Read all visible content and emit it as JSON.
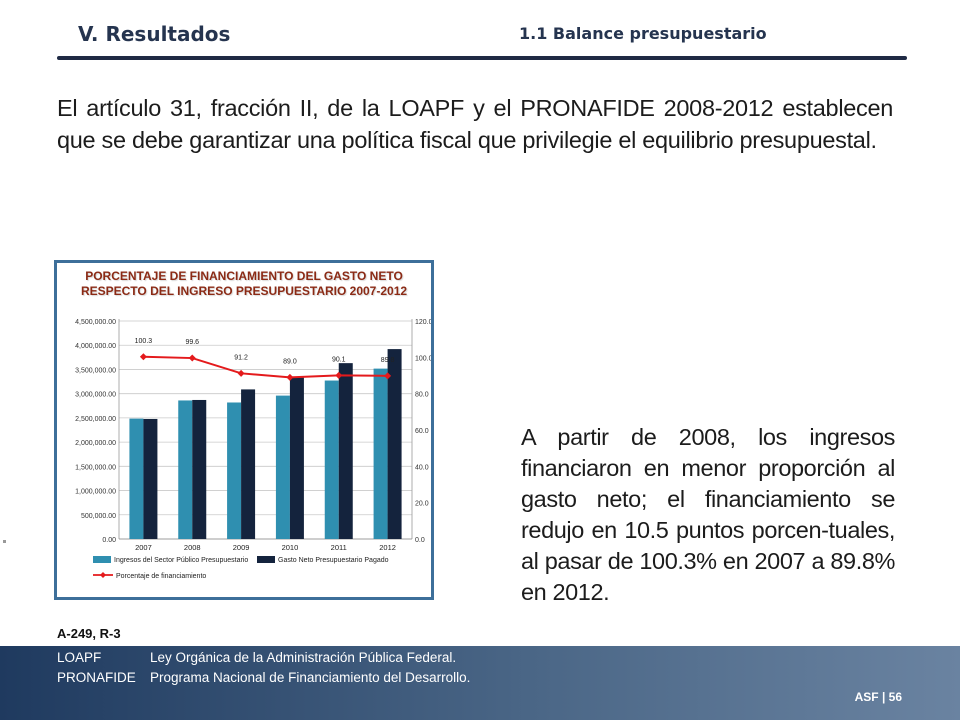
{
  "header": {
    "section": "V. Resultados",
    "subsection": "1.1 Balance presupuestario"
  },
  "intro_text": "El artículo 31, fracción II, de la LOAPF y el PRONAFIDE 2008-2012 establecen que se debe garantizar una política fiscal que privilegie el equilibrio presupuestal.",
  "right_text": "A partir de 2008, los ingresos financiaron en menor proporción al gasto neto; el financiamiento se redujo en 10.5 puntos porcen-tuales, al pasar de 100.3% en 2007 a 89.8% en 2012.",
  "source_ref": "A-249, R-3",
  "footer": {
    "line1_abbr": "LOAPF",
    "line1_text": "Ley Orgánica de la Administración Pública Federal.",
    "line2_abbr": "PRONAFIDE",
    "line2_text": "Programa Nacional de Financiamiento del Desarrollo.",
    "page": "ASF | 56"
  },
  "colors": {
    "brand_navy": "#1f2a44",
    "bar_light": "#2f8fb0",
    "bar_dark": "#14233d",
    "line_red": "#e41a1c",
    "chart_title": "#8b2a15"
  },
  "chart_data": {
    "type": "bar",
    "title": "PORCENTAJE DE FINANCIAMIENTO DEL GASTO NETO RESPECTO DEL INGRESO PRESUPUESTARIO 2007-2012",
    "categories": [
      "2007",
      "2008",
      "2009",
      "2010",
      "2011",
      "2012"
    ],
    "series": [
      {
        "name": "Ingresos del Sector Público Presupuestario",
        "values": [
          2485000,
          2860000,
          2818000,
          2960000,
          3271000,
          3517000
        ],
        "axis": "left"
      },
      {
        "name": "Gasto Neto Presupuestario Pagado",
        "values": [
          2478000,
          2870000,
          3088000,
          3332000,
          3630000,
          3920000
        ],
        "axis": "left"
      },
      {
        "name": "Porcentaje de financiamiento",
        "values": [
          100.3,
          99.6,
          91.2,
          89.0,
          90.1,
          89.8
        ],
        "axis": "right",
        "type": "line"
      }
    ],
    "data_labels": [
      "100.3",
      "99.6",
      "91.2",
      "89.0",
      "90.1",
      "89.8"
    ],
    "ylim_left": [
      0,
      4500000
    ],
    "yticks_left": [
      "0.00",
      "500,000.00",
      "1,000,000.00",
      "1,500,000.00",
      "2,000,000.00",
      "2,500,000.00",
      "3,000,000.00",
      "3,500,000.00",
      "4,000,000.00",
      "4,500,000.00"
    ],
    "ylim_right": [
      0,
      120
    ],
    "yticks_right": [
      "0.0",
      "20.0",
      "40.0",
      "60.0",
      "80.0",
      "100.0",
      "120.0"
    ],
    "grid": true,
    "legend_position": "bottom"
  }
}
